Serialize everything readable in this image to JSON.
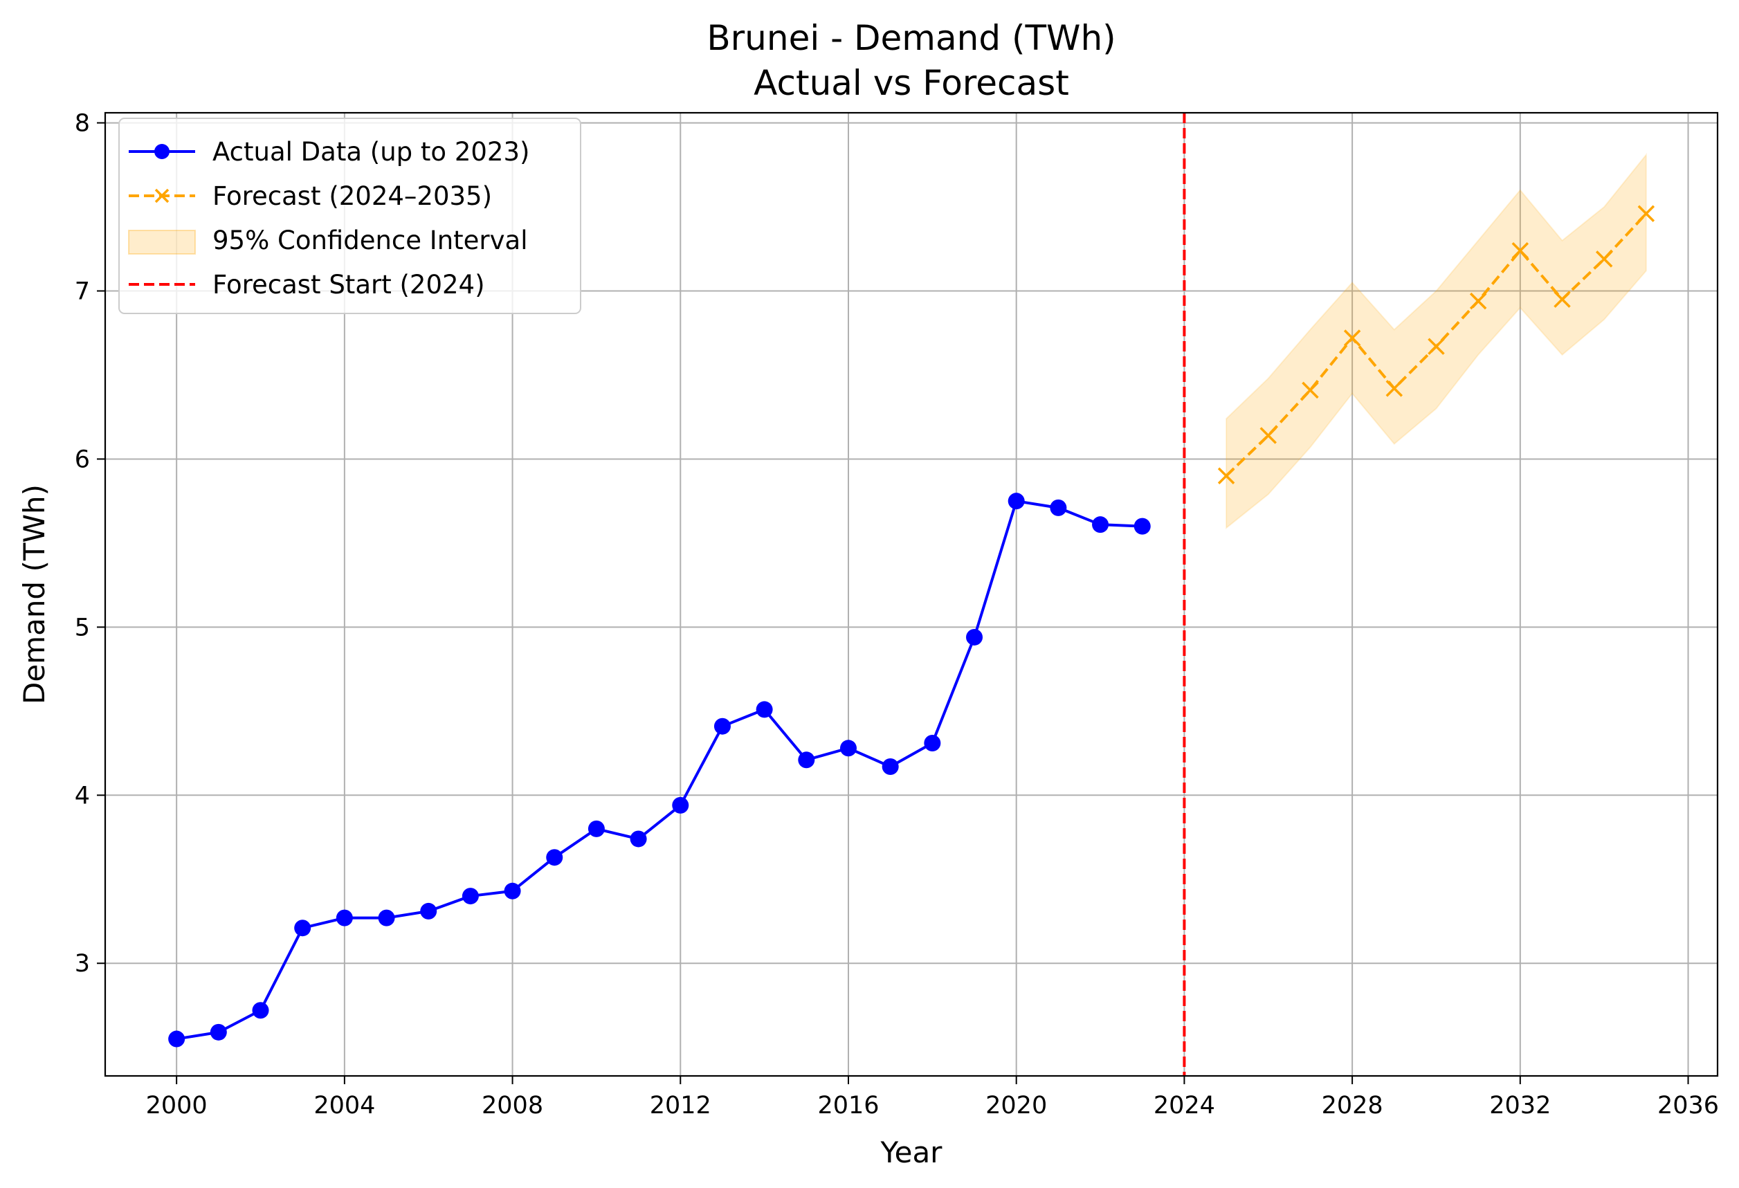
{
  "chart_data": {
    "type": "line",
    "title": "Brunei - Demand (TWh)",
    "subtitle": "Actual vs Forecast",
    "xlabel": "Year",
    "ylabel": "Demand (TWh)",
    "xlim": [
      1998.3,
      2036.7
    ],
    "ylim": [
      2.33,
      8.06
    ],
    "x_ticks": [
      2000,
      2004,
      2008,
      2012,
      2016,
      2020,
      2024,
      2028,
      2032,
      2036
    ],
    "y_ticks": [
      3,
      4,
      5,
      6,
      7,
      8
    ],
    "grid": true,
    "legend_position": "top-left",
    "series": [
      {
        "name": "Actual Data (up to 2023)",
        "style": "solid-circle",
        "color": "#0000ff",
        "x": [
          2000,
          2001,
          2002,
          2003,
          2004,
          2005,
          2006,
          2007,
          2008,
          2009,
          2010,
          2011,
          2012,
          2013,
          2014,
          2015,
          2016,
          2017,
          2018,
          2019,
          2020,
          2021,
          2022,
          2023
        ],
        "values": [
          2.55,
          2.59,
          2.72,
          3.21,
          3.27,
          3.27,
          3.31,
          3.4,
          3.43,
          3.63,
          3.8,
          3.74,
          3.94,
          4.41,
          4.51,
          4.21,
          4.28,
          4.17,
          4.31,
          4.94,
          5.75,
          5.71,
          5.61,
          5.6
        ]
      },
      {
        "name": "Forecast (2024–2035)",
        "style": "dashed-x",
        "color": "#ffa500",
        "x": [
          2025,
          2026,
          2027,
          2028,
          2029,
          2030,
          2031,
          2032,
          2033,
          2034,
          2035
        ],
        "values": [
          5.9,
          6.14,
          6.41,
          6.72,
          6.42,
          6.67,
          6.94,
          7.24,
          6.95,
          7.19,
          7.46
        ]
      }
    ],
    "confidence_interval": {
      "name": "95% Confidence Interval",
      "color": "#ffa500",
      "x": [
        2025,
        2026,
        2027,
        2028,
        2029,
        2030,
        2031,
        2032,
        2033,
        2034,
        2035
      ],
      "lower": [
        5.59,
        5.79,
        6.07,
        6.39,
        6.09,
        6.3,
        6.62,
        6.9,
        6.62,
        6.83,
        7.12
      ],
      "upper": [
        6.24,
        6.48,
        6.77,
        7.05,
        6.77,
        7.0,
        7.3,
        7.6,
        7.3,
        7.5,
        7.81
      ]
    },
    "vline": {
      "name": "Forecast Start (2024)",
      "x": 2024,
      "color": "#ff0000"
    }
  }
}
